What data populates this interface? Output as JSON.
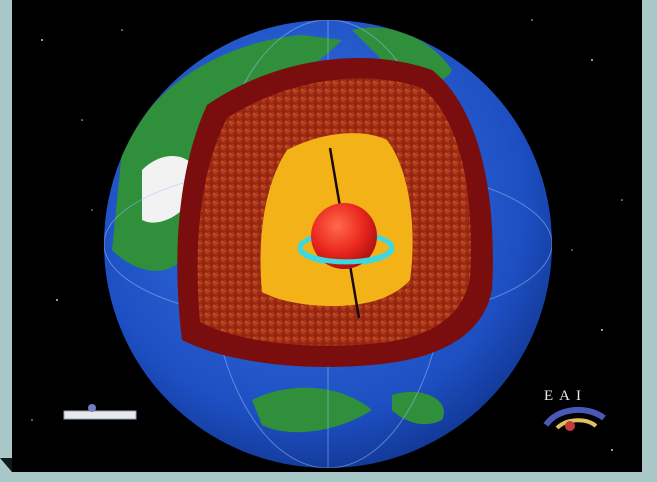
{
  "image": {
    "subject": "earth-interior-cutaway",
    "layers": [
      "crust",
      "mantle",
      "outer-core",
      "inner-core"
    ],
    "colors": {
      "background": "#a9c7c7",
      "space": "#000000",
      "ocean": "#1d4fc2",
      "land": "#2f8f3a",
      "ice": "#f2f2f2",
      "crust": "#7a0d0d",
      "mantle": "#a8321a",
      "outer_core": "#f3b318",
      "inner_core": "#e8241d",
      "axis_ring": "#3fd8e0"
    }
  },
  "logo": {
    "text": "EAI"
  }
}
